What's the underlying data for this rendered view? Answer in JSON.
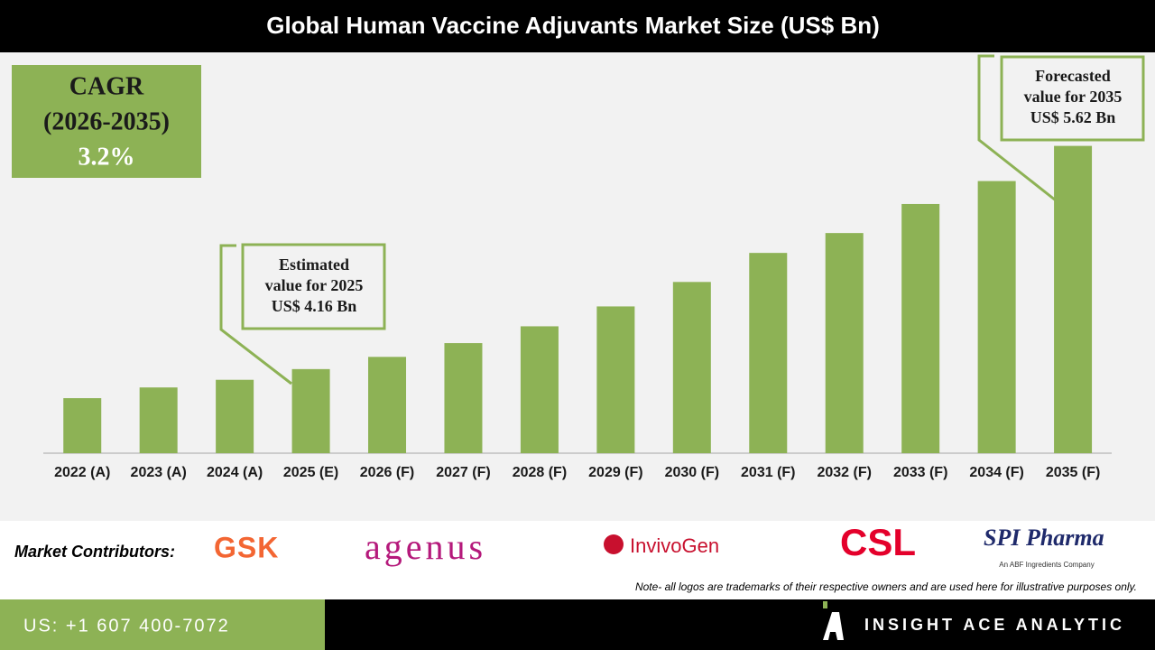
{
  "chart_data": {
    "type": "bar",
    "title": "Global Human Vaccine Adjuvants Market Size (US$ Bn)",
    "categories": [
      "2022 (A)",
      "2023 (A)",
      "2024 (A)",
      "2025 (E)",
      "2026 (F)",
      "2027 (F)",
      "2028 (F)",
      "2029 (F)",
      "2030 (F)",
      "2031 (F)",
      "2032 (F)",
      "2033 (F)",
      "2034 (F)",
      "2035 (F)"
    ],
    "values": [
      3.97,
      4.04,
      4.09,
      4.16,
      4.24,
      4.33,
      4.44,
      4.57,
      4.73,
      4.92,
      5.05,
      5.24,
      5.39,
      5.62
    ],
    "color": "#8db255",
    "ylim": [
      3.61,
      6.22
    ],
    "annotations": [
      {
        "lines": [
          "Estimated",
          "value for 2025",
          "US$ 4.16 Bn"
        ]
      },
      {
        "lines": [
          "Forecasted",
          "value for 2035",
          "US$ 5.62 Bn"
        ]
      }
    ]
  },
  "cagr_box": {
    "lines": [
      "CAGR",
      "(2026-2035)",
      "3.2%"
    ]
  },
  "footer": {
    "contributors_label": "Market Contributors:",
    "logos": [
      "GSK",
      "agenus",
      "InvivoGen",
      "CSL",
      "SPI Pharma",
      "An ABF Ingredients Company"
    ],
    "note": "Note- all logos are trademarks of their respective owners and are used here for illustrative purposes only.",
    "phone": "US: +1 607 400-7072",
    "brand": "INSIGHT ACE ANALYTIC"
  }
}
